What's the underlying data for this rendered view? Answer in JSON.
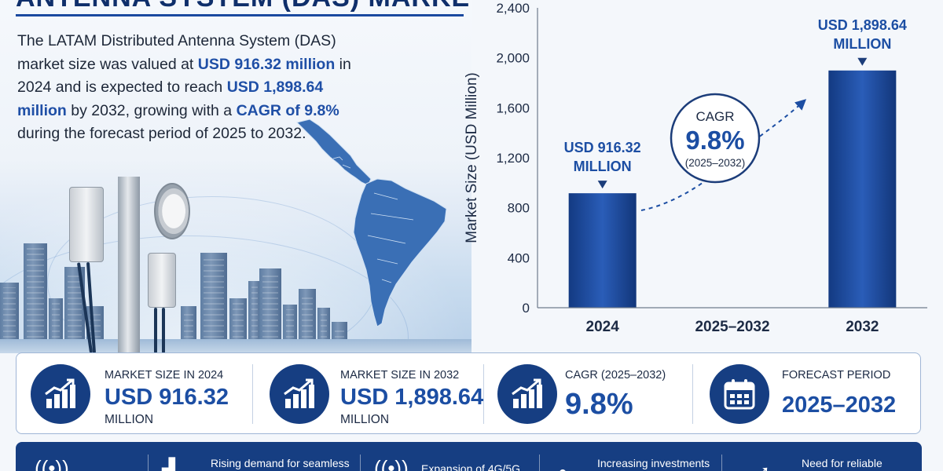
{
  "title": "ANTENNA SYSTEM (DAS) MARKET",
  "intro": {
    "p1": "The LATAM Distributed Antenna System (DAS) market size was valued at ",
    "hl1": "USD 916.32 million",
    "p2": " in 2024 and is expected to reach ",
    "hl2": "USD 1,898.64 million",
    "p3": " by 2032, growing with a ",
    "hl3": "CAGR of 9.8%",
    "p4": " during the forecast period of 2025 to 2032."
  },
  "chart_data": {
    "type": "bar",
    "categories": [
      "2024",
      "2025–2032",
      "2032"
    ],
    "values": [
      916.32,
      null,
      1898.64
    ],
    "ylabel": "Market Size (USD Million)",
    "ylim": [
      0,
      2400
    ],
    "yticks": [
      "0",
      "400",
      "800",
      "1,200",
      "1,600",
      "2,000",
      "2,400"
    ],
    "ytick_values": [
      0,
      400,
      800,
      1200,
      1600,
      2000,
      2400
    ],
    "bar_labels": [
      {
        "line1": "USD 916.32",
        "line2": "MILLION"
      },
      null,
      {
        "line1": "USD 1,898.64",
        "line2": "MILLION"
      }
    ],
    "cagr": {
      "label": "CAGR",
      "value": "9.8%",
      "period": "(2025–2032)"
    },
    "bar_color": "#1a4aa0",
    "grid": false
  },
  "stats": [
    {
      "label": "MARKET SIZE IN 2024",
      "value": "USD 916.32",
      "unit": "MILLION",
      "icon": "growth-chart-icon"
    },
    {
      "label": "MARKET SIZE IN 2032",
      "value": "USD 1,898.64",
      "unit": "MILLION",
      "icon": "growth-chart-icon"
    },
    {
      "label": "CAGR (2025–2032)",
      "value": "9.8%",
      "unit": "",
      "icon": "growth-chart-icon"
    },
    {
      "label": "FORECAST PERIOD",
      "value": "2025–2032",
      "unit": "",
      "icon": "calendar-icon"
    }
  ],
  "drivers": [
    {
      "text": "",
      "icon": "wireless-signal-icon"
    },
    {
      "text": "Rising demand for seamless",
      "icon": "building-icon"
    },
    {
      "text": "Expansion of 4G/5G",
      "icon": "signal-waves-icon"
    },
    {
      "text": "Increasing investments",
      "icon": "investment-icon"
    },
    {
      "text": "Need for reliable",
      "icon": "arrow-icon"
    }
  ],
  "colors": {
    "primary": "#163e82",
    "accent": "#1c4ea3",
    "bar": "#1a4aa0"
  }
}
